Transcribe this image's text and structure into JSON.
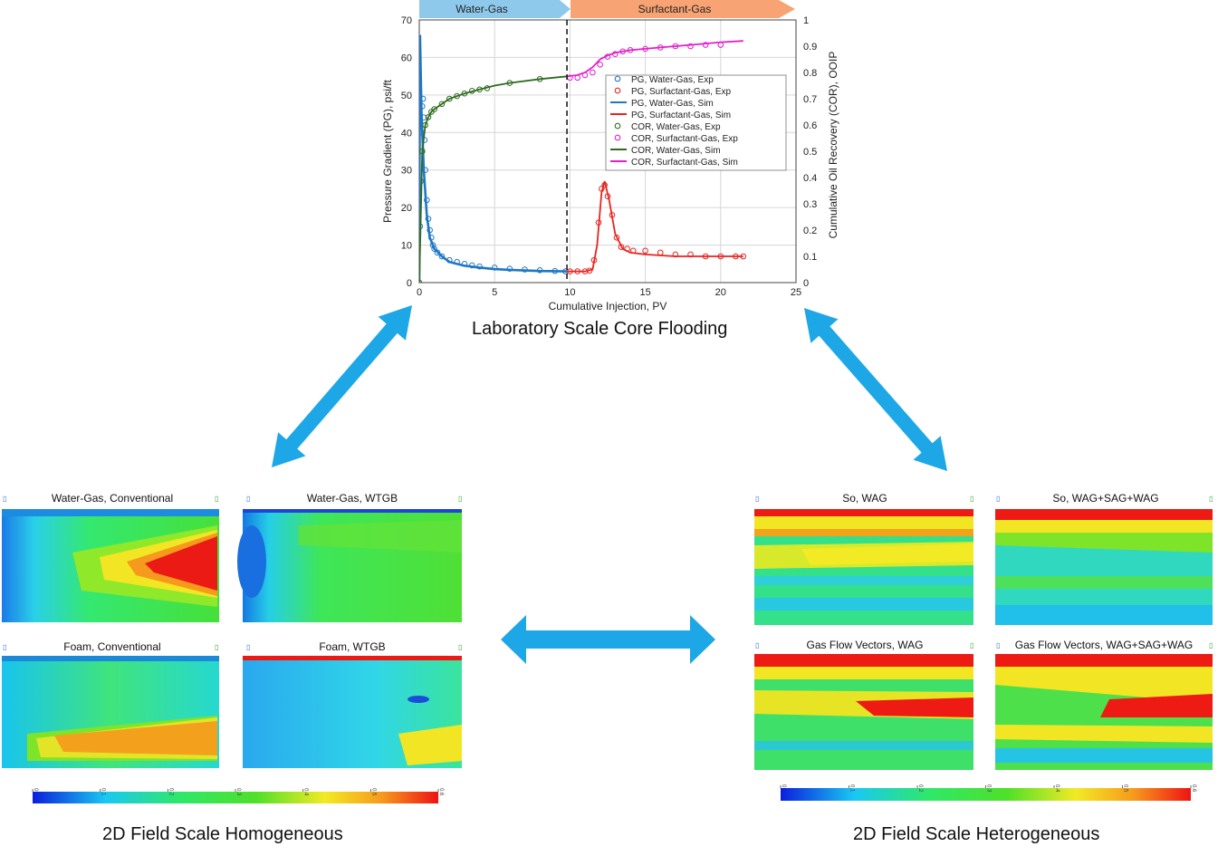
{
  "colors": {
    "arrow": "#1ea7e6",
    "water_gas_phase": "#8ec9ec",
    "surfactant_gas_phase": "#f7a373",
    "pg_water_gas": "#1f77c4",
    "pg_surfactant_gas": "#e8231f",
    "cor_water_gas": "#2e6b20",
    "cor_surfactant_gas": "#e31ecc"
  },
  "lab": {
    "caption": "Laboratory Scale Core Flooding",
    "phase_labels": [
      "Water-Gas",
      "Surfactant-Gas"
    ]
  },
  "panels": {
    "homogeneous_caption": "2D Field Scale Homogeneous",
    "heterogeneous_caption": "2D Field Scale Heterogeneous",
    "homogeneous": [
      {
        "title": "Water-Gas, Conventional"
      },
      {
        "title": "Water-Gas, WTGB"
      },
      {
        "title": "Foam, Conventional"
      },
      {
        "title": "Foam, WTGB"
      }
    ],
    "heterogeneous": [
      {
        "title": "So, WAG"
      },
      {
        "title": "So, WAG+SAG+WAG"
      },
      {
        "title": "Gas Flow Vectors, WAG"
      },
      {
        "title": "Gas Flow Vectors, WAG+SAG+WAG"
      }
    ],
    "colorbar_ticks": [
      "0",
      "0.1",
      "0.2",
      "0.3",
      "0.4",
      "0.5",
      "0.6"
    ]
  },
  "chart_data": {
    "type": "line",
    "title": "",
    "xlabel": "Cumulative Injection, PV",
    "ylabel": "Pressure Gradient (PG), psi/ft",
    "y2label": "Cumulative Oil Recovery (COR), OOIP",
    "xlim": [
      0,
      25
    ],
    "ylim": [
      0,
      70
    ],
    "y2lim": [
      0,
      1
    ],
    "xticks": [
      "0",
      "5",
      "10",
      "15",
      "20",
      "25"
    ],
    "yticks": [
      "0",
      "10",
      "20",
      "30",
      "40",
      "50",
      "60",
      "70"
    ],
    "y2ticks": [
      "0",
      "0.1",
      "0.2",
      "0.3",
      "0.4",
      "0.5",
      "0.6",
      "0.7",
      "0.8",
      "0.9",
      "1"
    ],
    "phase_boundary_x": 9.8,
    "legend": [
      "PG, Water-Gas, Exp",
      "PG, Surfactant-Gas, Exp",
      "PG, Water-Gas, Sim",
      "PG, Surfactant-Gas, Sim",
      "COR, Water-Gas, Exp",
      "COR, Surfactant-Gas, Exp",
      "COR, Water-Gas, Sim",
      "COR, Surfactant-Gas, Sim"
    ],
    "series": [
      {
        "name": "PG, Water-Gas, Exp",
        "axis": "left",
        "style": "markers",
        "x": [
          0.05,
          0.1,
          0.15,
          0.2,
          0.25,
          0.3,
          0.35,
          0.4,
          0.5,
          0.6,
          0.7,
          0.8,
          0.9,
          1.0,
          1.2,
          1.5,
          2,
          2.5,
          3,
          3.5,
          4,
          5,
          6,
          7,
          8,
          9,
          9.7
        ],
        "y": [
          15,
          27,
          40,
          47,
          49,
          44,
          38,
          30,
          22,
          17,
          14,
          12,
          10,
          9,
          8,
          7,
          6,
          5.5,
          5,
          4.6,
          4.3,
          4,
          3.7,
          3.5,
          3.3,
          3.1,
          3
        ]
      },
      {
        "name": "PG, Surfactant-Gas, Exp",
        "axis": "left",
        "style": "markers",
        "x": [
          10,
          10.5,
          11,
          11.3,
          11.6,
          11.9,
          12.1,
          12.3,
          12.5,
          12.8,
          13.1,
          13.4,
          13.8,
          14.2,
          15,
          16,
          17,
          18,
          19,
          20,
          21,
          21.5
        ],
        "y": [
          3,
          3,
          3,
          3.2,
          6,
          16,
          25,
          26,
          23,
          18,
          12,
          9.5,
          9,
          8.5,
          8.5,
          8,
          7.5,
          7.5,
          7,
          7,
          7,
          7
        ]
      },
      {
        "name": "PG, Water-Gas, Sim",
        "axis": "left",
        "style": "line",
        "x": [
          0,
          0.05,
          0.15,
          0.3,
          0.5,
          0.7,
          1,
          1.5,
          2,
          3,
          4,
          5,
          6,
          8,
          9.8
        ],
        "y": [
          0,
          66,
          45,
          30,
          18,
          12,
          9,
          7,
          5.5,
          4.5,
          4,
          3.6,
          3.4,
          3.1,
          3
        ]
      },
      {
        "name": "PG, Surfactant-Gas, Sim",
        "axis": "left",
        "style": "line",
        "x": [
          9.8,
          11,
          11.5,
          11.8,
          12.1,
          12.3,
          12.6,
          13,
          13.5,
          14,
          15,
          17,
          19,
          21.5
        ],
        "y": [
          3,
          3,
          3.5,
          10,
          24,
          27,
          22,
          13,
          9,
          8,
          7.5,
          7,
          7,
          7
        ]
      },
      {
        "name": "COR, Water-Gas, Exp",
        "axis": "right",
        "style": "markers",
        "x": [
          0,
          0.2,
          0.4,
          0.6,
          0.8,
          1,
          1.5,
          2,
          2.5,
          3,
          3.5,
          4,
          4.5,
          6,
          8
        ],
        "y": [
          0,
          0.5,
          0.6,
          0.63,
          0.65,
          0.66,
          0.68,
          0.7,
          0.71,
          0.72,
          0.73,
          0.735,
          0.74,
          0.76,
          0.775
        ]
      },
      {
        "name": "COR, Surfactant-Gas, Exp",
        "axis": "right",
        "style": "markers",
        "x": [
          10,
          10.5,
          11,
          11.5,
          12,
          12.5,
          13,
          13.5,
          14,
          15,
          16,
          17,
          18,
          19,
          20
        ],
        "y": [
          0.78,
          0.78,
          0.79,
          0.8,
          0.83,
          0.86,
          0.87,
          0.88,
          0.885,
          0.89,
          0.895,
          0.9,
          0.9,
          0.905,
          0.905
        ]
      },
      {
        "name": "COR, Water-Gas, Sim",
        "axis": "right",
        "style": "line",
        "x": [
          0,
          0.2,
          0.4,
          0.6,
          0.8,
          1,
          1.5,
          2,
          3,
          4,
          5,
          6,
          8,
          9.8
        ],
        "y": [
          0,
          0.5,
          0.6,
          0.63,
          0.65,
          0.66,
          0.68,
          0.7,
          0.72,
          0.735,
          0.75,
          0.76,
          0.775,
          0.785
        ]
      },
      {
        "name": "COR, Surfactant-Gas, Sim",
        "axis": "right",
        "style": "line",
        "x": [
          9.8,
          10.5,
          11,
          11.5,
          12,
          12.5,
          13,
          14,
          16,
          18,
          20,
          21.5
        ],
        "y": [
          0.785,
          0.79,
          0.8,
          0.82,
          0.85,
          0.865,
          0.875,
          0.885,
          0.895,
          0.905,
          0.915,
          0.92
        ]
      }
    ]
  }
}
